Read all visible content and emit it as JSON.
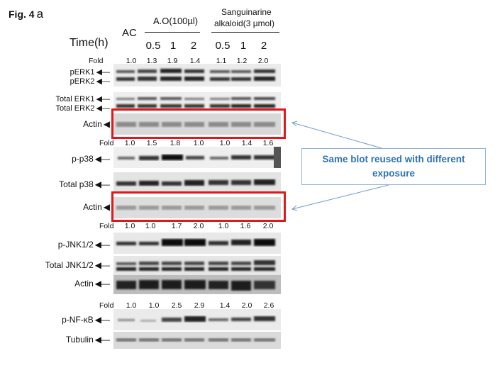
{
  "figure": {
    "label": "Fig. 4",
    "panel": "a"
  },
  "header": {
    "ac": "AC",
    "time_label": "Time(h)",
    "group_ao": "A.O(100µl)",
    "group_sang_line1": "Sanguinarine",
    "group_sang_line2": "alkaloid(3 µmol)",
    "times": [
      "0.5",
      "1",
      "2",
      "0.5",
      "1",
      "2"
    ]
  },
  "fold_label": "Fold",
  "fold_rows": [
    [
      "1.0",
      "1.3",
      "1.9",
      "1.4",
      "1.1",
      "1.2",
      "2.0"
    ],
    [
      "1.0",
      "1.5",
      "1.8",
      "1.0",
      "1.0",
      "1.4",
      "1.6"
    ],
    [
      "1.0",
      "1.0",
      "1.7",
      "2.0",
      "1.0",
      "1.6",
      "2.0"
    ],
    [
      "1.0",
      "1.0",
      "2.5",
      "2.9",
      "1.4",
      "2.0",
      "2.6"
    ]
  ],
  "band_labels": {
    "perk1": "pERK1",
    "perk2": "pERK2",
    "total_erk1": "Total ERK1",
    "total_erk2": "Total ERK2",
    "actin1": "Actin",
    "p_p38": "p-p38",
    "total_p38": "Total p38",
    "actin2": "Actin",
    "p_jnk": "p-JNK1/2",
    "total_jnk": "Total JNK1/2",
    "actin3": "Actin",
    "p_nfkb": "p-NF-κB",
    "tubulin": "Tubulin"
  },
  "callout": {
    "text": "Same blot reused with different exposure"
  },
  "colors": {
    "highlight": "#e0181b",
    "callout_text": "#2e74b5",
    "callout_border": "#8fb4d9"
  }
}
